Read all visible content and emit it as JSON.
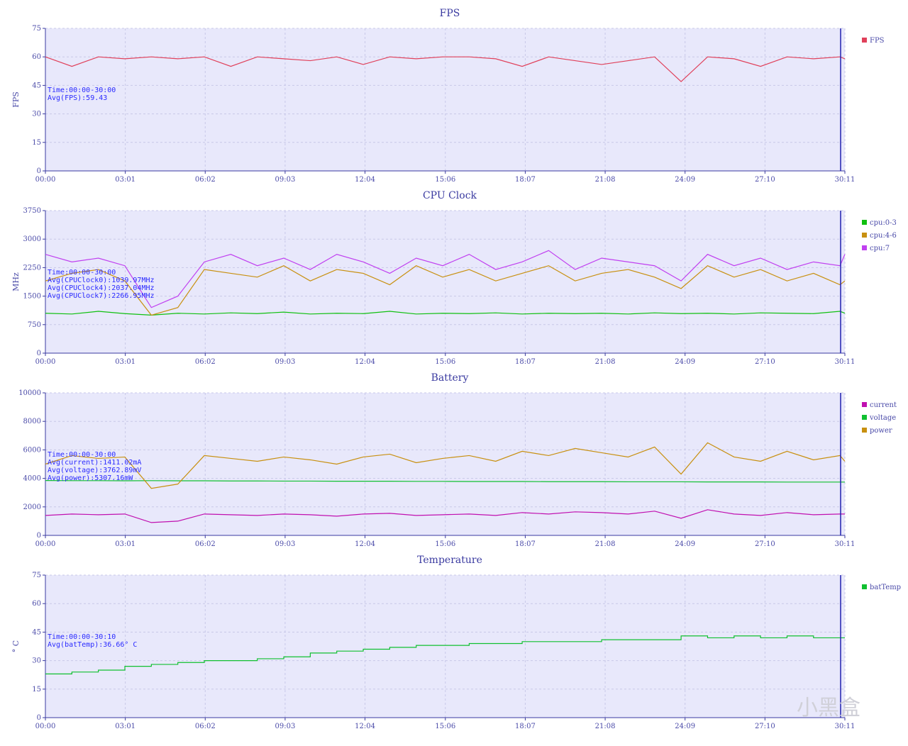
{
  "x_ticks": [
    "00:00",
    "03:01",
    "06:02",
    "09:03",
    "12:04",
    "15:06",
    "18:07",
    "21:08",
    "24:09",
    "27:10",
    "30:11"
  ],
  "colors": {
    "plot_bg": "#e8e8fb",
    "grid": "#c8c8e8",
    "axis": "#3a3aa0",
    "cursor": "#2020b0"
  },
  "watermark": "小黑盒",
  "chart_data": [
    {
      "type": "line",
      "title": "FPS",
      "ylabel": "FPS",
      "ylim": [
        0,
        75
      ],
      "yticks": [
        0,
        15,
        30,
        45,
        60,
        75
      ],
      "xlim": [
        "00:00",
        "30:11"
      ],
      "grid": true,
      "legend": "right",
      "annotation": [
        "Time:00:00-30:00",
        "Avg(FPS):59.43"
      ],
      "x": [
        "00:00",
        "01:00",
        "02:00",
        "03:00",
        "04:00",
        "05:00",
        "06:00",
        "07:00",
        "08:00",
        "09:00",
        "10:00",
        "11:00",
        "12:00",
        "13:00",
        "14:00",
        "15:00",
        "16:00",
        "17:00",
        "18:00",
        "19:00",
        "20:00",
        "21:00",
        "22:00",
        "23:00",
        "24:00",
        "25:00",
        "26:00",
        "27:00",
        "28:00",
        "29:00",
        "30:00",
        "30:11"
      ],
      "series": [
        {
          "name": "FPS",
          "color": "#e0405a",
          "values": [
            60,
            55,
            60,
            59,
            60,
            59,
            60,
            55,
            60,
            59,
            58,
            60,
            56,
            60,
            59,
            60,
            60,
            59,
            55,
            60,
            58,
            56,
            58,
            60,
            47,
            60,
            59,
            55,
            60,
            59,
            60,
            59
          ]
        }
      ]
    },
    {
      "type": "line",
      "title": "CPU Clock",
      "ylabel": "MHz",
      "ylim": [
        0,
        3750
      ],
      "yticks": [
        0,
        750,
        1500,
        2250,
        3000,
        3750
      ],
      "xlim": [
        "00:00",
        "30:11"
      ],
      "grid": true,
      "legend": "right",
      "annotation": [
        "Time:00:00-30:00",
        "Avg(CPUClock0):1039.97MHz",
        "Avg(CPUClock4):2037.04MHz",
        "Avg(CPUClock7):2266.95MHz"
      ],
      "x": [
        "00:00",
        "01:00",
        "02:00",
        "03:00",
        "04:00",
        "05:00",
        "06:00",
        "07:00",
        "08:00",
        "09:00",
        "10:00",
        "11:00",
        "12:00",
        "13:00",
        "14:00",
        "15:00",
        "16:00",
        "17:00",
        "18:00",
        "19:00",
        "20:00",
        "21:00",
        "22:00",
        "23:00",
        "24:00",
        "25:00",
        "26:00",
        "27:00",
        "28:00",
        "29:00",
        "30:00",
        "30:11"
      ],
      "series": [
        {
          "name": "cpu:0-3",
          "color": "#10c010",
          "values": [
            1050,
            1030,
            1100,
            1040,
            1000,
            1050,
            1030,
            1060,
            1040,
            1080,
            1030,
            1050,
            1040,
            1100,
            1030,
            1050,
            1040,
            1060,
            1030,
            1050,
            1040,
            1050,
            1030,
            1060,
            1040,
            1050,
            1030,
            1060,
            1050,
            1040,
            1100,
            1050
          ]
        },
        {
          "name": "cpu:4-6",
          "color": "#c89010",
          "values": [
            1900,
            2100,
            2200,
            1900,
            1000,
            1200,
            2200,
            2100,
            2000,
            2300,
            1900,
            2200,
            2100,
            1800,
            2300,
            2000,
            2200,
            1900,
            2100,
            2300,
            1900,
            2100,
            2200,
            2000,
            1700,
            2300,
            2000,
            2200,
            1900,
            2100,
            1800,
            1900
          ]
        },
        {
          "name": "cpu:7",
          "color": "#c040f0",
          "values": [
            2600,
            2400,
            2500,
            2300,
            1200,
            1500,
            2400,
            2600,
            2300,
            2500,
            2200,
            2600,
            2400,
            2100,
            2500,
            2300,
            2600,
            2200,
            2400,
            2700,
            2200,
            2500,
            2400,
            2300,
            1900,
            2600,
            2300,
            2500,
            2200,
            2400,
            2300,
            2600
          ]
        }
      ]
    },
    {
      "type": "line",
      "title": "Battery",
      "ylabel": "",
      "ylim": [
        0,
        10000
      ],
      "yticks": [
        0,
        2000,
        4000,
        6000,
        8000,
        10000
      ],
      "xlim": [
        "00:00",
        "30:11"
      ],
      "grid": true,
      "legend": "right",
      "annotation": [
        "Time:00:00-30:00",
        "Avg(current):1411.02mA",
        "Avg(voltage):3762.89mV",
        "Avg(power):5307.16mW"
      ],
      "x": [
        "00:00",
        "01:00",
        "02:00",
        "03:00",
        "04:00",
        "05:00",
        "06:00",
        "07:00",
        "08:00",
        "09:00",
        "10:00",
        "11:00",
        "12:00",
        "13:00",
        "14:00",
        "15:00",
        "16:00",
        "17:00",
        "18:00",
        "19:00",
        "20:00",
        "21:00",
        "22:00",
        "23:00",
        "24:00",
        "25:00",
        "26:00",
        "27:00",
        "28:00",
        "29:00",
        "30:00",
        "30:11"
      ],
      "series": [
        {
          "name": "current",
          "color": "#c010b0",
          "values": [
            1400,
            1500,
            1450,
            1500,
            900,
            1000,
            1500,
            1450,
            1400,
            1500,
            1450,
            1350,
            1500,
            1550,
            1400,
            1450,
            1500,
            1400,
            1600,
            1500,
            1650,
            1600,
            1500,
            1700,
            1200,
            1800,
            1500,
            1400,
            1600,
            1450,
            1500,
            1500
          ]
        },
        {
          "name": "voltage",
          "color": "#10c030",
          "values": [
            3850,
            3840,
            3840,
            3830,
            3840,
            3830,
            3830,
            3820,
            3820,
            3810,
            3810,
            3800,
            3800,
            3800,
            3790,
            3790,
            3780,
            3780,
            3780,
            3770,
            3770,
            3770,
            3760,
            3760,
            3760,
            3750,
            3750,
            3750,
            3740,
            3740,
            3740,
            3740
          ]
        },
        {
          "name": "power",
          "color": "#c89010",
          "values": [
            5000,
            5600,
            5400,
            5500,
            3300,
            3600,
            5600,
            5400,
            5200,
            5500,
            5300,
            5000,
            5500,
            5700,
            5100,
            5400,
            5600,
            5200,
            5900,
            5600,
            6100,
            5800,
            5500,
            6200,
            4300,
            6500,
            5500,
            5200,
            5900,
            5300,
            5600,
            5200
          ]
        }
      ]
    },
    {
      "type": "line",
      "title": "Temperature",
      "ylabel": "° C",
      "ylim": [
        0,
        75
      ],
      "yticks": [
        0,
        15,
        30,
        45,
        60,
        75
      ],
      "xlim": [
        "00:00",
        "30:11"
      ],
      "grid": true,
      "legend": "right",
      "annotation": [
        "Time:00:00-30:10",
        "Avg(batTemp):36.66° C"
      ],
      "x": [
        "00:00",
        "01:00",
        "02:00",
        "03:00",
        "04:00",
        "05:00",
        "06:00",
        "07:00",
        "08:00",
        "09:00",
        "10:00",
        "11:00",
        "12:00",
        "13:00",
        "14:00",
        "15:00",
        "16:00",
        "17:00",
        "18:00",
        "19:00",
        "20:00",
        "21:00",
        "22:00",
        "23:00",
        "24:00",
        "25:00",
        "26:00",
        "27:00",
        "28:00",
        "29:00",
        "30:00",
        "30:11"
      ],
      "step": true,
      "series": [
        {
          "name": "batTemp",
          "color": "#10c030",
          "values": [
            23,
            24,
            25,
            27,
            28,
            29,
            30,
            30,
            31,
            32,
            34,
            35,
            36,
            37,
            38,
            38,
            39,
            39,
            40,
            40,
            40,
            41,
            41,
            41,
            43,
            42,
            43,
            42,
            43,
            42,
            42,
            42
          ]
        }
      ]
    }
  ]
}
